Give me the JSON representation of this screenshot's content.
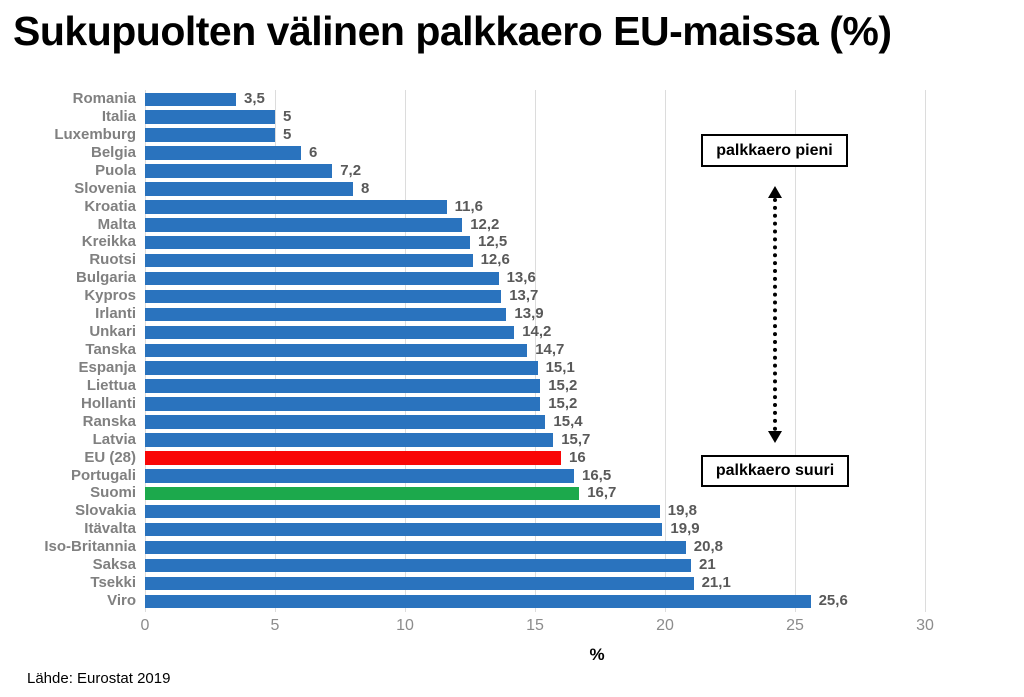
{
  "page_title": "Sukupuolten välinen palkkaero EU-maissa (%)",
  "source_caption": "Lähde: Eurostat 2019",
  "annotations": {
    "small_gap_label": "palkkaero pieni",
    "large_gap_label": "palkkaero suuri"
  },
  "colors": {
    "bar_blue": "#2A73BE",
    "bar_red": "#F90606",
    "bar_green": "#1CA94C",
    "category_label": "#808080",
    "value_label": "#595959",
    "tick_label": "#8C8C8C",
    "gridline": "#DCDCDC",
    "annotation_border": "#000000"
  },
  "chart_data": {
    "type": "bar",
    "orientation": "horizontal",
    "title": "Sukupuolten välinen palkkaero EU-maissa (%)",
    "xlabel": "%",
    "xlim": [
      0,
      30
    ],
    "xticks": [
      0,
      5,
      10,
      15,
      20,
      25,
      30
    ],
    "grid": "vertical",
    "legend": "none",
    "rows": [
      {
        "label": "Romania",
        "value": 3.5,
        "display": "3,5",
        "color": "bar_blue"
      },
      {
        "label": "Italia",
        "value": 5,
        "display": "5",
        "color": "bar_blue"
      },
      {
        "label": "Luxemburg",
        "value": 5,
        "display": "5",
        "color": "bar_blue"
      },
      {
        "label": "Belgia",
        "value": 6,
        "display": "6",
        "color": "bar_blue"
      },
      {
        "label": "Puola",
        "value": 7.2,
        "display": "7,2",
        "color": "bar_blue"
      },
      {
        "label": "Slovenia",
        "value": 8,
        "display": "8",
        "color": "bar_blue"
      },
      {
        "label": "Kroatia",
        "value": 11.6,
        "display": "11,6",
        "color": "bar_blue"
      },
      {
        "label": "Malta",
        "value": 12.2,
        "display": "12,2",
        "color": "bar_blue"
      },
      {
        "label": "Kreikka",
        "value": 12.5,
        "display": "12,5",
        "color": "bar_blue"
      },
      {
        "label": "Ruotsi",
        "value": 12.6,
        "display": "12,6",
        "color": "bar_blue"
      },
      {
        "label": "Bulgaria",
        "value": 13.6,
        "display": "13,6",
        "color": "bar_blue"
      },
      {
        "label": "Kypros",
        "value": 13.7,
        "display": "13,7",
        "color": "bar_blue"
      },
      {
        "label": "Irlanti",
        "value": 13.9,
        "display": "13,9",
        "color": "bar_blue"
      },
      {
        "label": "Unkari",
        "value": 14.2,
        "display": "14,2",
        "color": "bar_blue"
      },
      {
        "label": "Tanska",
        "value": 14.7,
        "display": "14,7",
        "color": "bar_blue"
      },
      {
        "label": "Espanja",
        "value": 15.1,
        "display": "15,1",
        "color": "bar_blue"
      },
      {
        "label": "Liettua",
        "value": 15.2,
        "display": "15,2",
        "color": "bar_blue"
      },
      {
        "label": "Hollanti",
        "value": 15.2,
        "display": "15,2",
        "color": "bar_blue"
      },
      {
        "label": "Ranska",
        "value": 15.4,
        "display": "15,4",
        "color": "bar_blue"
      },
      {
        "label": "Latvia",
        "value": 15.7,
        "display": "15,7",
        "color": "bar_blue"
      },
      {
        "label": "EU (28)",
        "value": 16,
        "display": "16",
        "color": "bar_red"
      },
      {
        "label": "Portugali",
        "value": 16.5,
        "display": "16,5",
        "color": "bar_blue"
      },
      {
        "label": "Suomi",
        "value": 16.7,
        "display": "16,7",
        "color": "bar_green"
      },
      {
        "label": "Slovakia",
        "value": 19.8,
        "display": "19,8",
        "color": "bar_blue"
      },
      {
        "label": "Itävalta",
        "value": 19.9,
        "display": "19,9",
        "color": "bar_blue"
      },
      {
        "label": "Iso-Britannia",
        "value": 20.8,
        "display": "20,8",
        "color": "bar_blue"
      },
      {
        "label": "Saksa",
        "value": 21,
        "display": "21",
        "color": "bar_blue"
      },
      {
        "label": "Tsekki",
        "value": 21.1,
        "display": "21,1",
        "color": "bar_blue"
      },
      {
        "label": "Viro",
        "value": 25.6,
        "display": "25,6",
        "color": "bar_blue"
      }
    ]
  }
}
